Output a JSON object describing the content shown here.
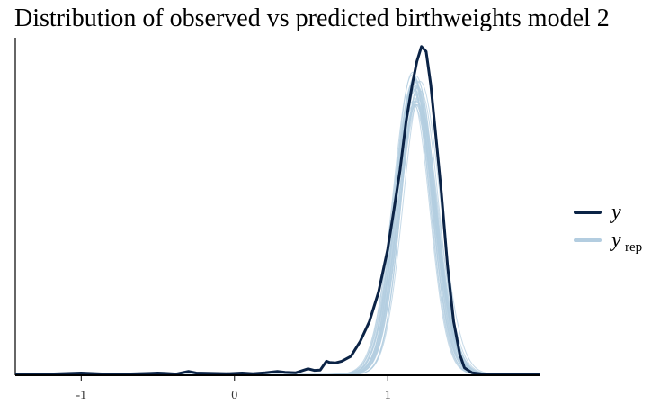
{
  "chart_data": {
    "type": "line",
    "title": "Distribution of observed vs predicted birthweights model 2",
    "xlabel": "",
    "ylabel": "",
    "xlim": [
      -1.43,
      1.99
    ],
    "ylim": [
      0,
      1
    ],
    "grid": false,
    "legend_position": "right",
    "x_ticks": [
      -1,
      0,
      1
    ],
    "x_tick_labels": [
      "-1",
      "0",
      "1"
    ],
    "legend": [
      {
        "key": "y",
        "label": "y",
        "subscript": "",
        "color": "#0b2346"
      },
      {
        "key": "yrep",
        "label": "y",
        "subscript": "rep",
        "color": "#b3cde0"
      }
    ],
    "series": [
      {
        "name": "y",
        "role": "observed",
        "color": "#0b2346",
        "points": [
          [
            -1.43,
            0.001
          ],
          [
            -1.2,
            0.001
          ],
          [
            -1.0,
            0.004
          ],
          [
            -0.85,
            0.001
          ],
          [
            -0.7,
            0.001
          ],
          [
            -0.55,
            0.003
          ],
          [
            -0.5,
            0.004
          ],
          [
            -0.45,
            0.003
          ],
          [
            -0.38,
            0.001
          ],
          [
            -0.3,
            0.009
          ],
          [
            -0.25,
            0.004
          ],
          [
            -0.15,
            0.003
          ],
          [
            -0.05,
            0.002
          ],
          [
            0.05,
            0.004
          ],
          [
            0.12,
            0.002
          ],
          [
            0.2,
            0.005
          ],
          [
            0.28,
            0.009
          ],
          [
            0.33,
            0.006
          ],
          [
            0.4,
            0.005
          ],
          [
            0.48,
            0.017
          ],
          [
            0.52,
            0.012
          ],
          [
            0.56,
            0.013
          ],
          [
            0.6,
            0.04
          ],
          [
            0.62,
            0.036
          ],
          [
            0.66,
            0.035
          ],
          [
            0.7,
            0.04
          ],
          [
            0.76,
            0.055
          ],
          [
            0.82,
            0.1
          ],
          [
            0.88,
            0.16
          ],
          [
            0.94,
            0.25
          ],
          [
            1.0,
            0.38
          ],
          [
            1.04,
            0.5
          ],
          [
            1.08,
            0.62
          ],
          [
            1.12,
            0.77
          ],
          [
            1.16,
            0.88
          ],
          [
            1.19,
            0.95
          ],
          [
            1.22,
            0.995
          ],
          [
            1.25,
            0.98
          ],
          [
            1.28,
            0.88
          ],
          [
            1.31,
            0.74
          ],
          [
            1.35,
            0.55
          ],
          [
            1.39,
            0.33
          ],
          [
            1.43,
            0.16
          ],
          [
            1.47,
            0.06
          ],
          [
            1.5,
            0.02
          ],
          [
            1.55,
            0.005
          ],
          [
            1.62,
            0.001
          ],
          [
            1.99,
            0.001
          ]
        ]
      }
    ],
    "replicates": {
      "name": "yrep",
      "color": "#b3cde0",
      "count": 30,
      "mu_range": [
        1.18,
        1.24
      ],
      "sigma_range": [
        0.11,
        0.135
      ],
      "peak_range": [
        0.8,
        0.9
      ]
    }
  }
}
